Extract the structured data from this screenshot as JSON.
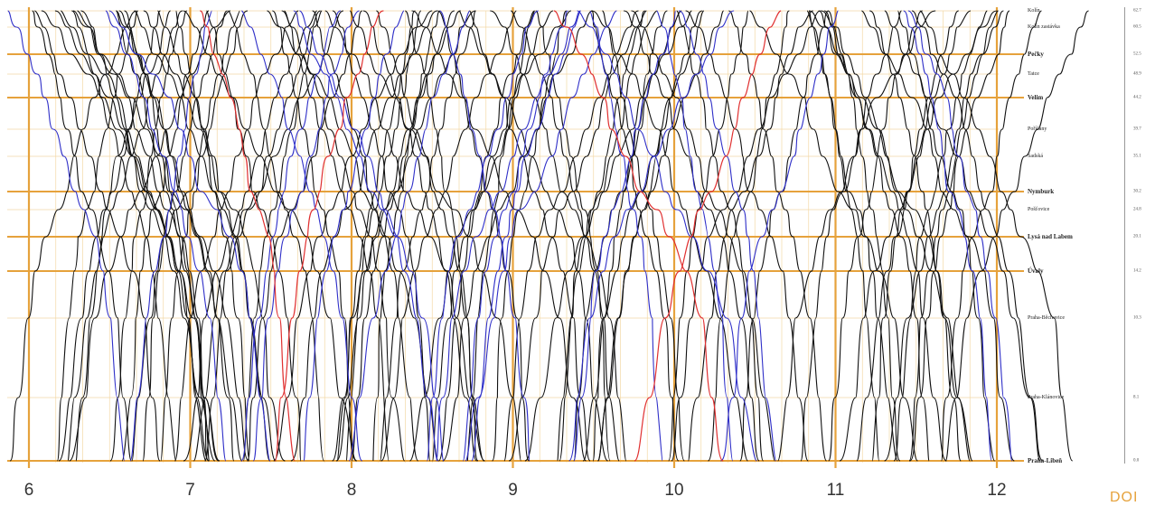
{
  "diagram": {
    "type": "railway graphical timetable",
    "hours": [
      "6",
      "7",
      "8",
      "9",
      "10",
      "11",
      "12"
    ],
    "colors": {
      "background": "#ffffff",
      "major_grid": "#e6a23c",
      "minor_grid": "#f3d9a6",
      "regional_trains": "#111111",
      "express_trains": "#2f2fc8",
      "highlight_trains": "#e03030"
    },
    "stations": [
      {
        "name": "Kolín",
        "km": "62.7",
        "main": false
      },
      {
        "name": "Kolín zastávka",
        "km": "60.5",
        "main": false
      },
      {
        "name": "Pečky",
        "km": "52.5",
        "main": true
      },
      {
        "name": "Tatce",
        "km": "48.9",
        "main": false
      },
      {
        "name": "Velim",
        "km": "44.2",
        "main": true
      },
      {
        "name": "Poříčany",
        "km": "39.7",
        "main": false
      },
      {
        "name": "Sadská",
        "km": "35.1",
        "main": false
      },
      {
        "name": "Nymburk",
        "km": "30.2",
        "main": true
      },
      {
        "name": "Pošťovice",
        "km": "24.8",
        "main": false
      },
      {
        "name": "Lysá nad Labem",
        "km": "20.1",
        "main": true
      },
      {
        "name": "Úvaly",
        "km": "14.2",
        "main": true
      },
      {
        "name": "Praha-Běchovice",
        "km": "10.3",
        "main": false
      },
      {
        "name": "Praha-Klánovice",
        "km": "8.1",
        "main": false
      },
      {
        "name": "Praha-Libeň",
        "km": "0.0",
        "main": true
      }
    ],
    "corner_text": "DOI"
  }
}
